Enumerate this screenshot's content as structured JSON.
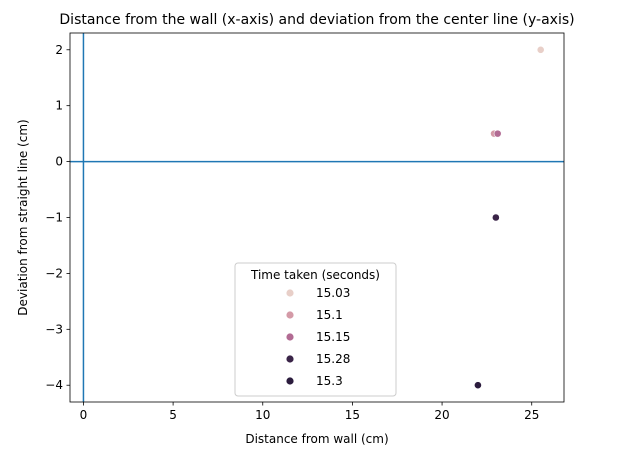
{
  "chart_data": {
    "type": "scatter",
    "title": "Distance from the wall (x-axis) and deviation from the center line (y-axis)",
    "xlabel": "Distance from wall (cm)",
    "ylabel": "Deviation from straight line (cm)",
    "xlim": [
      -0.75,
      26.8
    ],
    "ylim": [
      -4.3,
      2.3
    ],
    "xticks": [
      0,
      5,
      10,
      15,
      20,
      25
    ],
    "yticks": [
      -4,
      -3,
      -2,
      -1,
      0,
      1,
      2
    ],
    "reference_lines": [
      {
        "orientation": "vertical",
        "value": 0,
        "color": "#1f77b4"
      },
      {
        "orientation": "horizontal",
        "value": 0,
        "color": "#1f77b4"
      }
    ],
    "legend": {
      "title": "Time taken (seconds)",
      "placement": "lower-center"
    },
    "series": [
      {
        "name": "15.03",
        "color": "#e8cfc8",
        "points": [
          {
            "x": 25.5,
            "y": 2
          }
        ]
      },
      {
        "name": "15.1",
        "color": "#d49aa7",
        "points": [
          {
            "x": 22.9,
            "y": 0.5
          }
        ]
      },
      {
        "name": "15.15",
        "color": "#b26b93",
        "points": [
          {
            "x": 23.1,
            "y": 0.5
          }
        ]
      },
      {
        "name": "15.28",
        "color": "#3a2448",
        "points": [
          {
            "x": 23.0,
            "y": -1
          }
        ]
      },
      {
        "name": "15.3",
        "color": "#2b1c3d",
        "points": [
          {
            "x": 22.0,
            "y": -4
          }
        ]
      }
    ]
  }
}
